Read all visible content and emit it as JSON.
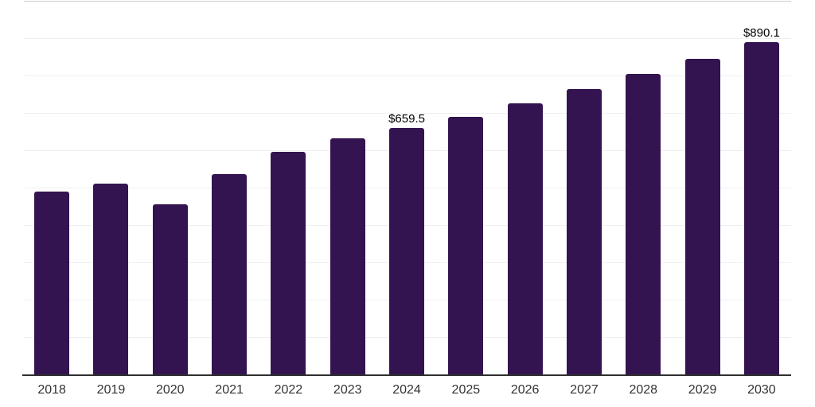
{
  "chart_data": {
    "type": "bar",
    "title": "",
    "xlabel": "",
    "ylabel": "",
    "categories": [
      "2018",
      "2019",
      "2020",
      "2021",
      "2022",
      "2023",
      "2024",
      "2025",
      "2026",
      "2027",
      "2028",
      "2029",
      "2030"
    ],
    "values": [
      489,
      511,
      455,
      536,
      596,
      632,
      659.5,
      690,
      726,
      764,
      804,
      845,
      890.1
    ],
    "point_labels": [
      "",
      "",
      "",
      "",
      "",
      "",
      "$659.5",
      "",
      "",
      "",
      "",
      "",
      "$890.1"
    ],
    "ylim": [
      0,
      1000
    ],
    "grid_step": 100,
    "grid": true,
    "legend": false,
    "y_tick_labels_visible": false,
    "colors": {
      "bar": "#341450",
      "axis": "#2f2f2f",
      "gridline": "#efeff1",
      "top_gridline": "#c8cdd2",
      "tick_label": "#333333",
      "data_label": "#000000",
      "background": "#ffffff"
    }
  }
}
